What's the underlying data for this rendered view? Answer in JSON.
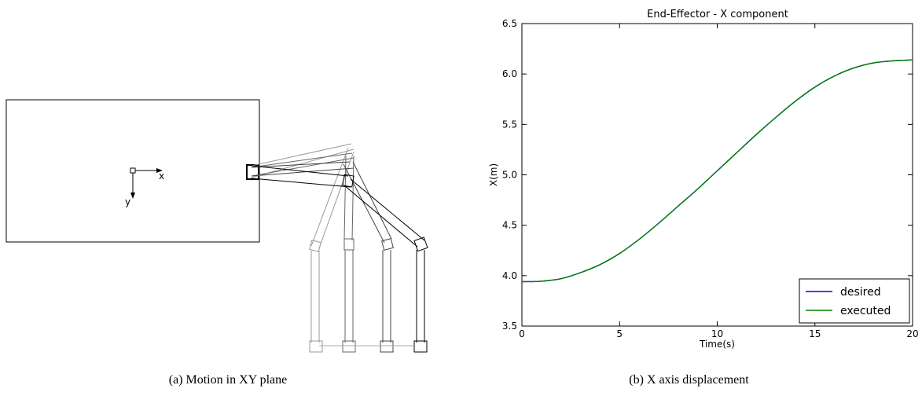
{
  "panel_a": {
    "caption": "(a) Motion in XY plane",
    "x_axis_label": "x",
    "y_axis_label": "y"
  },
  "panel_b": {
    "caption": "(b) X axis displacement"
  },
  "chart_data": {
    "type": "line",
    "title": "End-Effector - X component",
    "xlabel": "Time(s)",
    "ylabel": "X(m)",
    "xlim": [
      0,
      20
    ],
    "ylim": [
      3.5,
      6.5
    ],
    "xticks": [
      0,
      5,
      10,
      15,
      20
    ],
    "yticks": [
      3.5,
      4.0,
      4.5,
      5.0,
      5.5,
      6.0,
      6.5
    ],
    "ytick_labels": [
      "3.5",
      "4.0",
      "4.5",
      "5.0",
      "5.5",
      "6.0",
      "6.5"
    ],
    "grid": false,
    "legend_position": "lower-right",
    "x": [
      0,
      1,
      2,
      3,
      4,
      5,
      6,
      7,
      8,
      9,
      10,
      11,
      12,
      13,
      14,
      15,
      16,
      17,
      18,
      19,
      20
    ],
    "series": [
      {
        "name": "desired",
        "color": "#0000ff",
        "values": [
          3.94,
          3.945,
          3.97,
          4.03,
          4.11,
          4.22,
          4.36,
          4.52,
          4.69,
          4.86,
          5.04,
          5.22,
          5.4,
          5.57,
          5.73,
          5.87,
          5.98,
          6.06,
          6.11,
          6.13,
          6.14
        ]
      },
      {
        "name": "executed",
        "color": "#008000",
        "values": [
          3.94,
          3.945,
          3.97,
          4.03,
          4.11,
          4.22,
          4.36,
          4.52,
          4.69,
          4.86,
          5.04,
          5.22,
          5.4,
          5.57,
          5.73,
          5.87,
          5.98,
          6.06,
          6.11,
          6.13,
          6.14
        ]
      }
    ]
  }
}
